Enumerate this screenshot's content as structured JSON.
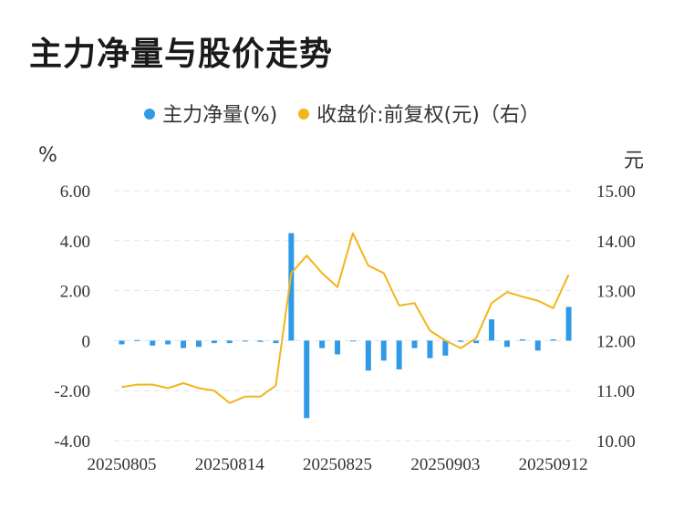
{
  "title": "主力净量与股价走势",
  "colors": {
    "bar": "#2f9ae8",
    "line": "#f2b51a",
    "grid": "#e3e3e3",
    "text": "#333333"
  },
  "chart_data": {
    "type": "bar+line",
    "legend_position": "top-center",
    "grid": "horizontal-dashed",
    "x_tick_labels": [
      "20250805",
      "20250814",
      "20250825",
      "20250903",
      "20250912"
    ],
    "x_tick_indices": [
      0,
      7,
      14,
      21,
      28
    ],
    "y_left": {
      "unit": "%",
      "range": [
        -4,
        6
      ],
      "ticks": [
        6,
        4,
        2,
        0,
        -2,
        -4
      ],
      "tick_labels": [
        "6.00",
        "4.00",
        "2.00",
        "0",
        "-2.00",
        "-4.00"
      ]
    },
    "y_right": {
      "unit": "元",
      "range": [
        10,
        15
      ],
      "ticks": [
        15,
        14,
        13,
        12,
        11,
        10
      ],
      "tick_labels": [
        "15.00",
        "14.00",
        "13.00",
        "12.00",
        "11.00",
        "10.00"
      ]
    },
    "series": [
      {
        "name": "主力净量(%)",
        "type": "bar",
        "axis": "left",
        "values": [
          -0.15,
          0.02,
          -0.2,
          -0.15,
          -0.3,
          -0.25,
          -0.1,
          -0.1,
          0.0,
          -0.05,
          -0.1,
          4.3,
          -3.1,
          -0.3,
          -0.55,
          -0.02,
          -1.2,
          -0.8,
          -1.15,
          -0.3,
          -0.7,
          -0.6,
          -0.05,
          -0.1,
          0.85,
          -0.25,
          0.05,
          -0.4,
          0.05,
          1.35
        ]
      },
      {
        "name": "收盘价:前复权(元)（右）",
        "type": "line",
        "axis": "right",
        "values": [
          11.07,
          11.12,
          11.12,
          11.05,
          11.15,
          11.05,
          11.0,
          10.75,
          10.88,
          10.88,
          11.1,
          13.35,
          13.7,
          13.35,
          13.07,
          14.15,
          13.5,
          13.35,
          12.7,
          12.75,
          12.2,
          12.0,
          11.85,
          12.05,
          12.75,
          12.97,
          12.88,
          12.8,
          12.65,
          13.32
        ]
      }
    ]
  }
}
